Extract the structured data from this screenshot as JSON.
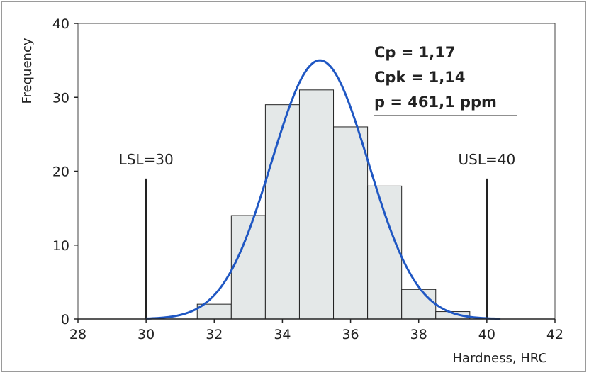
{
  "chart_data": {
    "type": "bar",
    "xlabel": "Hardness, HRC",
    "ylabel": "Frequency",
    "xlim": [
      28,
      42
    ],
    "ylim": [
      0,
      40
    ],
    "x_ticks": [
      "28",
      "30",
      "32",
      "34",
      "36",
      "38",
      "40",
      "42"
    ],
    "y_ticks": [
      "0",
      "10",
      "20",
      "30",
      "40"
    ],
    "bins": [
      {
        "x0": 31.5,
        "x1": 32.5,
        "value": 2
      },
      {
        "x0": 32.5,
        "x1": 33.5,
        "value": 14
      },
      {
        "x0": 33.5,
        "x1": 34.5,
        "value": 29
      },
      {
        "x0": 34.5,
        "x1": 35.5,
        "value": 31
      },
      {
        "x0": 35.5,
        "x1": 36.5,
        "value": 26
      },
      {
        "x0": 36.5,
        "x1": 37.5,
        "value": 18
      },
      {
        "x0": 37.5,
        "x1": 38.5,
        "value": 4
      },
      {
        "x0": 38.5,
        "x1": 39.5,
        "value": 1
      }
    ],
    "fit_curve": {
      "type": "normal",
      "mean": 35.1,
      "sd": 1.42,
      "peak": 35,
      "x_range": [
        30,
        40.4
      ]
    },
    "limits": [
      {
        "label": "LSL=30",
        "value": 30,
        "top": 19
      },
      {
        "label": "USL=40",
        "value": 40,
        "top": 19
      }
    ],
    "stats": [
      "Cp = 1,17",
      "Cpk = 1,14",
      "p = 461,1 ppm"
    ],
    "colors": {
      "bar_fill": "#e4e8e8",
      "bar_stroke": "#222222",
      "curve": "#1f57c3",
      "limit_line": "#222222"
    },
    "grid": false
  }
}
